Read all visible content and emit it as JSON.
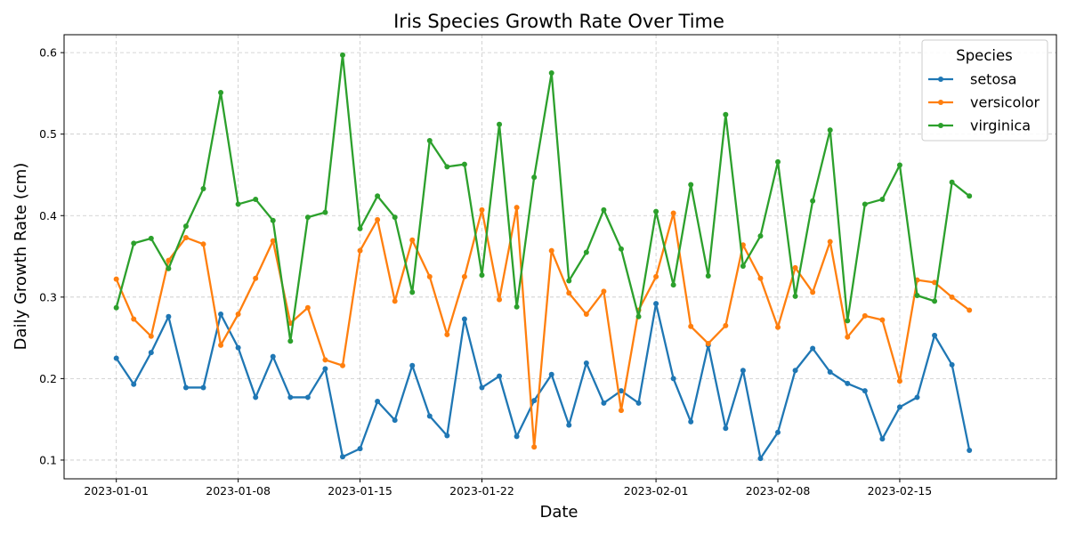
{
  "chart_data": {
    "type": "line",
    "title": "Iris Species Growth Rate Over Time",
    "xlabel": "Date",
    "ylabel": "Daily Growth Rate (cm)",
    "x_start": "2023-01-01",
    "x_ticks": [
      "2023-01-01",
      "2023-01-08",
      "2023-01-15",
      "2023-01-22",
      "2023-02-01",
      "2023-02-08",
      "2023-02-15"
    ],
    "xlim": [
      "2022-12-29",
      "2023-02-24"
    ],
    "y_ticks": [
      "0.1",
      "0.2",
      "0.3",
      "0.4",
      "0.5",
      "0.6"
    ],
    "ylim": [
      0.077,
      0.622
    ],
    "grid": true,
    "legend_title": "Species",
    "legend_position": "top-right",
    "series": [
      {
        "name": "setosa",
        "color": "#1f77b4",
        "values": [
          0.225,
          0.193,
          0.232,
          0.276,
          0.189,
          0.189,
          0.279,
          0.238,
          0.177,
          0.227,
          0.177,
          0.177,
          0.212,
          0.104,
          0.114,
          0.172,
          0.149,
          0.216,
          0.154,
          0.13,
          0.273,
          0.189,
          0.203,
          0.129,
          0.173,
          0.205,
          0.143,
          0.219,
          0.17,
          0.185,
          0.17,
          0.292,
          0.2,
          0.147,
          0.241,
          0.139,
          0.21,
          0.102,
          0.134,
          0.21,
          0.237,
          0.208,
          0.194,
          0.185,
          0.126,
          0.165,
          0.177,
          0.253,
          0.217,
          0.112
        ]
      },
      {
        "name": "versicolor",
        "color": "#ff7f0e",
        "values": [
          0.322,
          0.273,
          0.252,
          0.345,
          0.373,
          0.365,
          0.241,
          0.279,
          0.323,
          0.369,
          0.268,
          0.287,
          0.223,
          0.216,
          0.357,
          0.395,
          0.295,
          0.37,
          0.325,
          0.254,
          0.325,
          0.407,
          0.297,
          0.41,
          0.116,
          0.357,
          0.305,
          0.279,
          0.307,
          0.161,
          0.284,
          0.325,
          0.403,
          0.264,
          0.243,
          0.265,
          0.364,
          0.323,
          0.263,
          0.336,
          0.306,
          0.368,
          0.251,
          0.277,
          0.272,
          0.197,
          0.321,
          0.318,
          0.3,
          0.284
        ]
      },
      {
        "name": "virginica",
        "color": "#2ca02c",
        "values": [
          0.287,
          0.366,
          0.372,
          0.335,
          0.387,
          0.433,
          0.551,
          0.414,
          0.42,
          0.394,
          0.246,
          0.398,
          0.404,
          0.597,
          0.384,
          0.424,
          0.398,
          0.306,
          0.492,
          0.46,
          0.463,
          0.327,
          0.512,
          0.288,
          0.447,
          0.575,
          0.32,
          0.355,
          0.407,
          0.359,
          0.276,
          0.405,
          0.315,
          0.438,
          0.326,
          0.524,
          0.338,
          0.375,
          0.466,
          0.301,
          0.418,
          0.505,
          0.271,
          0.414,
          0.42,
          0.462,
          0.302,
          0.295,
          0.441,
          0.424
        ]
      }
    ]
  }
}
